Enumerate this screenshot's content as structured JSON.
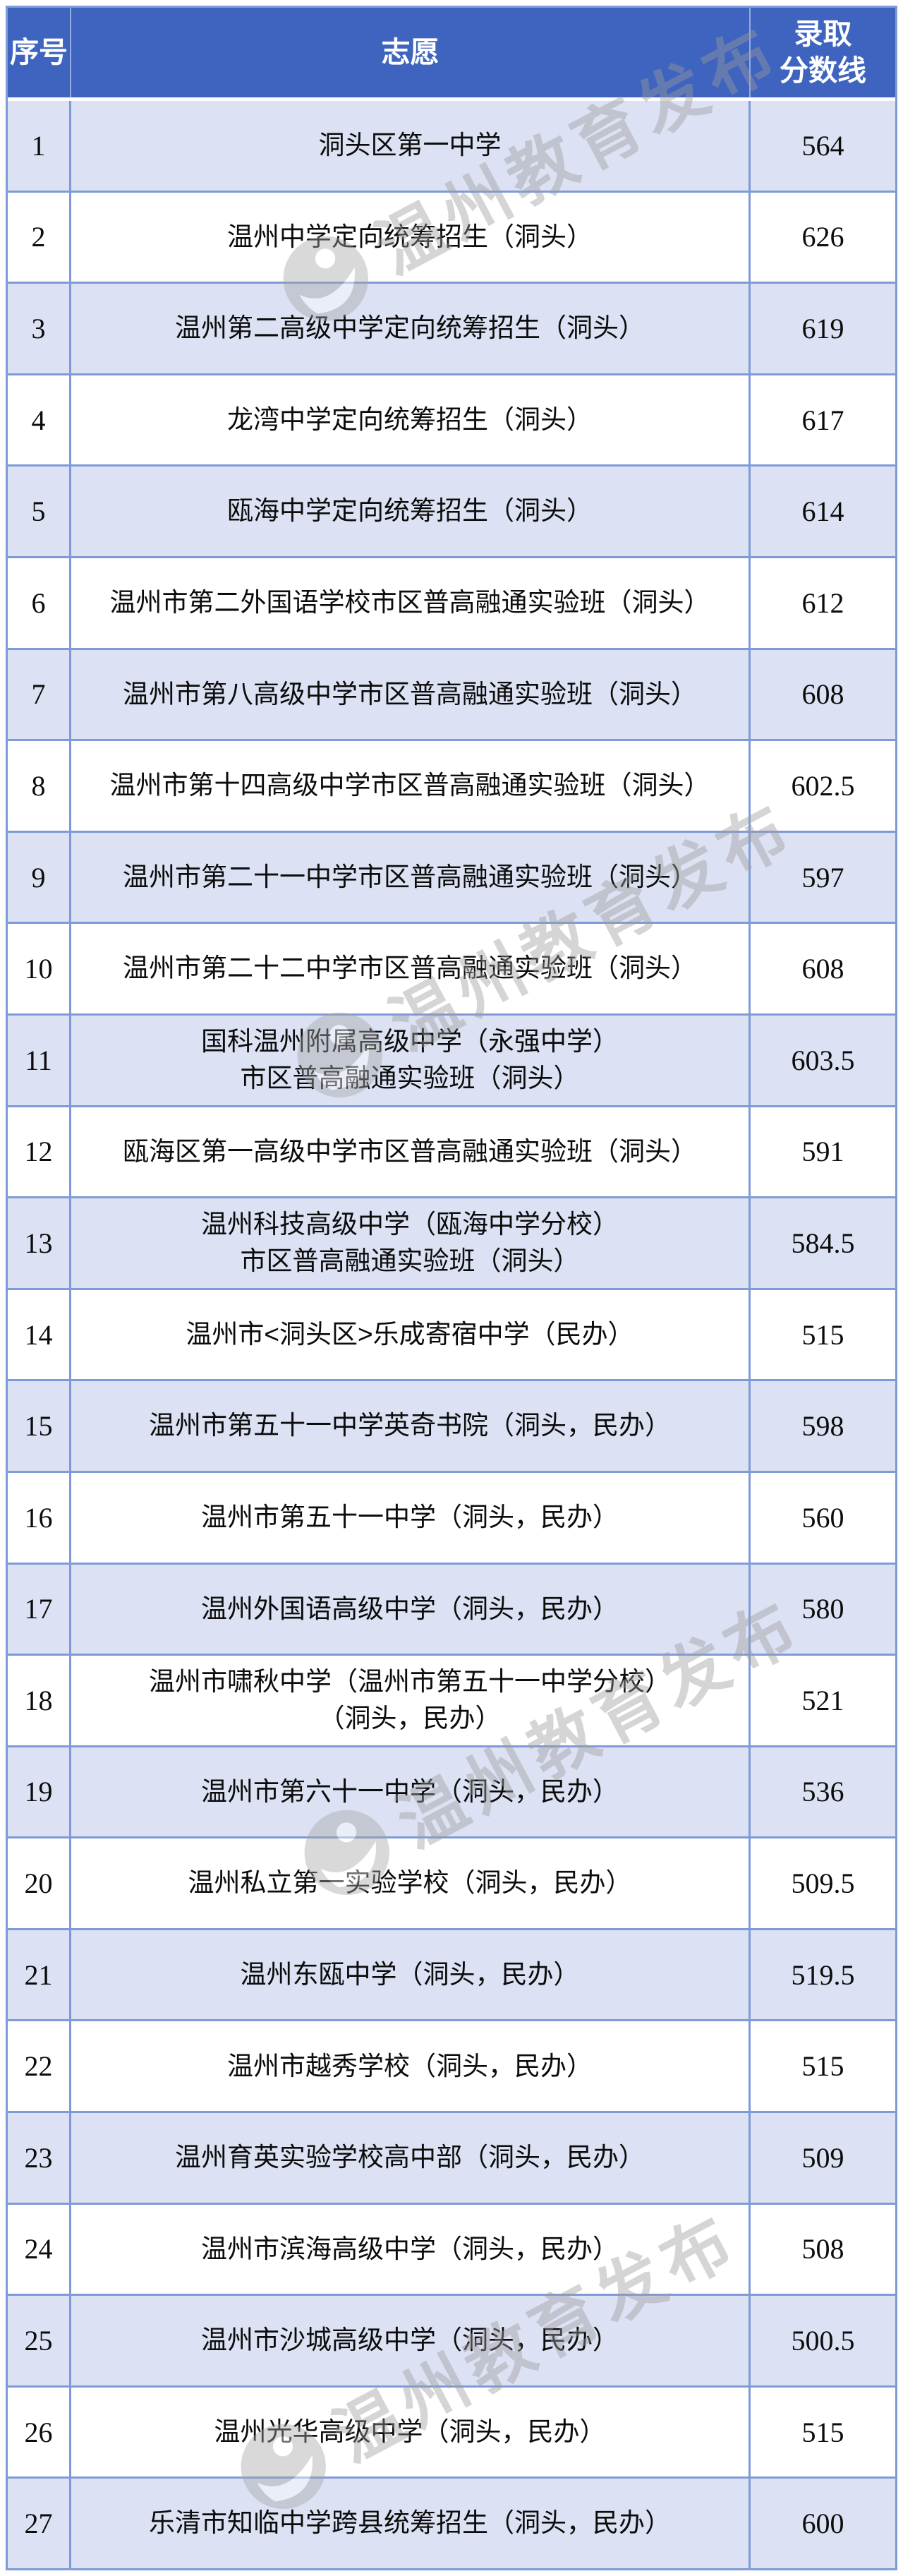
{
  "table": {
    "headers": {
      "serial": "序号",
      "choice": "志愿",
      "score_line1": "录取",
      "score_line2": "分数线"
    },
    "rows": [
      {
        "no": "1",
        "choice": [
          "洞头区第一中学"
        ],
        "score": "564"
      },
      {
        "no": "2",
        "choice": [
          "温州中学定向统筹招生（洞头）"
        ],
        "score": "626"
      },
      {
        "no": "3",
        "choice": [
          "温州第二高级中学定向统筹招生（洞头）"
        ],
        "score": "619"
      },
      {
        "no": "4",
        "choice": [
          "龙湾中学定向统筹招生（洞头）"
        ],
        "score": "617"
      },
      {
        "no": "5",
        "choice": [
          "瓯海中学定向统筹招生（洞头）"
        ],
        "score": "614"
      },
      {
        "no": "6",
        "choice": [
          "温州市第二外国语学校市区普高融通实验班（洞头）"
        ],
        "score": "612"
      },
      {
        "no": "7",
        "choice": [
          "温州市第八高级中学市区普高融通实验班（洞头）"
        ],
        "score": "608"
      },
      {
        "no": "8",
        "choice": [
          "温州市第十四高级中学市区普高融通实验班（洞头）"
        ],
        "score": "602.5"
      },
      {
        "no": "9",
        "choice": [
          "温州市第二十一中学市区普高融通实验班（洞头）"
        ],
        "score": "597"
      },
      {
        "no": "10",
        "choice": [
          "温州市第二十二中学市区普高融通实验班（洞头）"
        ],
        "score": "608"
      },
      {
        "no": "11",
        "choice": [
          "国科温州附属高级中学（永强中学）",
          "市区普高融通实验班（洞头）"
        ],
        "score": "603.5"
      },
      {
        "no": "12",
        "choice": [
          "瓯海区第一高级中学市区普高融通实验班（洞头）"
        ],
        "score": "591"
      },
      {
        "no": "13",
        "choice": [
          "温州科技高级中学（瓯海中学分校）",
          "市区普高融通实验班（洞头）"
        ],
        "score": "584.5"
      },
      {
        "no": "14",
        "choice": [
          "温州市<洞头区>乐成寄宿中学（民办）"
        ],
        "score": "515"
      },
      {
        "no": "15",
        "choice": [
          "温州市第五十一中学英奇书院（洞头，民办）"
        ],
        "score": "598"
      },
      {
        "no": "16",
        "choice": [
          "温州市第五十一中学（洞头，民办）"
        ],
        "score": "560"
      },
      {
        "no": "17",
        "choice": [
          "温州外国语高级中学（洞头，民办）"
        ],
        "score": "580"
      },
      {
        "no": "18",
        "choice": [
          "温州市啸秋中学（温州市第五十一中学分校）",
          "（洞头，民办）"
        ],
        "score": "521"
      },
      {
        "no": "19",
        "choice": [
          "温州市第六十一中学（洞头，民办）"
        ],
        "score": "536"
      },
      {
        "no": "20",
        "choice": [
          "温州私立第一实验学校（洞头，民办）"
        ],
        "score": "509.5"
      },
      {
        "no": "21",
        "choice": [
          "温州东瓯中学（洞头，民办）"
        ],
        "score": "519.5"
      },
      {
        "no": "22",
        "choice": [
          "温州市越秀学校（洞头，民办）"
        ],
        "score": "515"
      },
      {
        "no": "23",
        "choice": [
          "温州育英实验学校高中部（洞头，民办）"
        ],
        "score": "509"
      },
      {
        "no": "24",
        "choice": [
          "温州市滨海高级中学（洞头，民办）"
        ],
        "score": "508"
      },
      {
        "no": "25",
        "choice": [
          "温州市沙城高级中学（洞头，民办）"
        ],
        "score": "500.5"
      },
      {
        "no": "26",
        "choice": [
          "温州光华高级中学（洞头，民办）"
        ],
        "score": "515"
      },
      {
        "no": "27",
        "choice": [
          "乐清市知临中学跨县统筹招生（洞头，民办）"
        ],
        "score": "600"
      }
    ]
  },
  "watermark": {
    "text": "温州教育发布"
  },
  "colors": {
    "header_bg": "#3E64BF",
    "header_text": "#FFFFFF",
    "row_shaded_bg": "#DCE2F3",
    "row_plain_bg": "#FFFFFF",
    "border": "#7E9BD7",
    "body_text": "#0C0C0C",
    "watermark": "#9C9C9C"
  }
}
